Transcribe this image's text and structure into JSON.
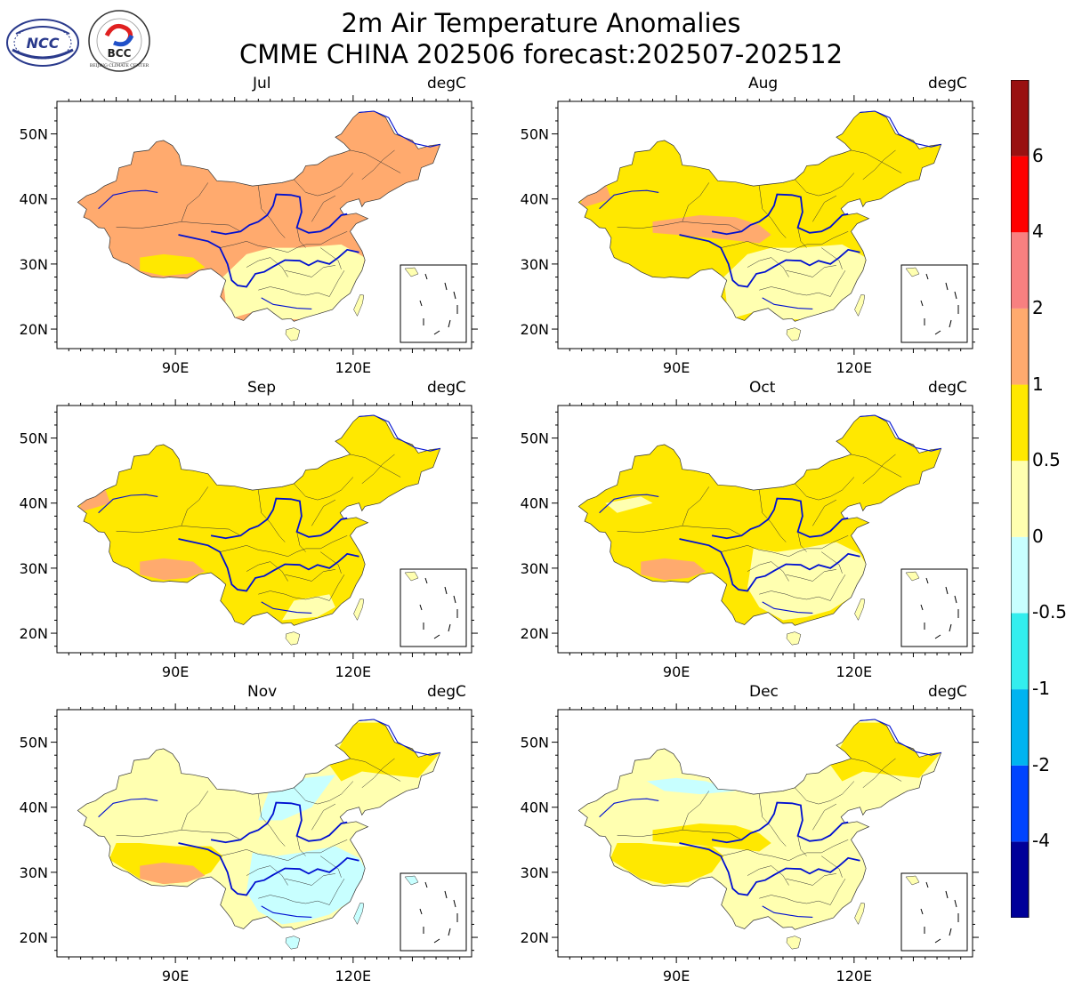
{
  "header": {
    "title_line1": "2m Air Temperature Anomalies",
    "title_line2": "CMME CHINA 202506 forecast:202507-202512",
    "logo_left_text": "NCC",
    "logo_right_text": "BCC",
    "logo_right_caption": "BEIJING CLIMATE CENTER"
  },
  "colors": {
    "background": "#ffffff",
    "land": "#ffffff",
    "rivers": "#0010d0",
    "boundaries": "#333333",
    "frame": "#000000"
  },
  "axes": {
    "lat_ticks": [
      "20N",
      "30N",
      "40N",
      "50N"
    ],
    "lon_ticks": [
      "90E",
      "120E"
    ],
    "lat_values": [
      20,
      30,
      40,
      50
    ],
    "lon_values": [
      90,
      120
    ],
    "lon_range": [
      70,
      140
    ],
    "lat_range": [
      17,
      55
    ]
  },
  "panels": [
    {
      "month": "Jul",
      "unit": "degC",
      "dominant": "1 to 2",
      "secondary": "0.5 to 1",
      "south": "0 to 0.5"
    },
    {
      "month": "Aug",
      "unit": "degC",
      "dominant": "0.5 to 1",
      "secondary": "1 to 2",
      "south": "0 to 0.5"
    },
    {
      "month": "Sep",
      "unit": "degC",
      "dominant": "0.5 to 1",
      "secondary": "1 to 2",
      "south": "0 to 0.5"
    },
    {
      "month": "Oct",
      "unit": "degC",
      "dominant": "0.5 to 1",
      "secondary": "0 to 0.5",
      "south": "0 to 0.5"
    },
    {
      "month": "Nov",
      "unit": "degC",
      "dominant": "0 to 0.5",
      "secondary": "-0.5 to 0",
      "south": "-0.5 to 0"
    },
    {
      "month": "Dec",
      "unit": "degC",
      "dominant": "0 to 0.5",
      "secondary": "0.5 to 1",
      "south": "0 to 0.5"
    }
  ],
  "colorbar": {
    "levels": [
      "-4",
      "-2",
      "-1",
      "-0.5",
      "0",
      "0.5",
      "1",
      "2",
      "4",
      "6"
    ],
    "colors": [
      "#000099",
      "#0044ff",
      "#00b4f0",
      "#33eeee",
      "#c8ffff",
      "#ffffb0",
      "#ffe800",
      "#ffaa6e",
      "#f88080",
      "#ff0000",
      "#991111"
    ]
  }
}
